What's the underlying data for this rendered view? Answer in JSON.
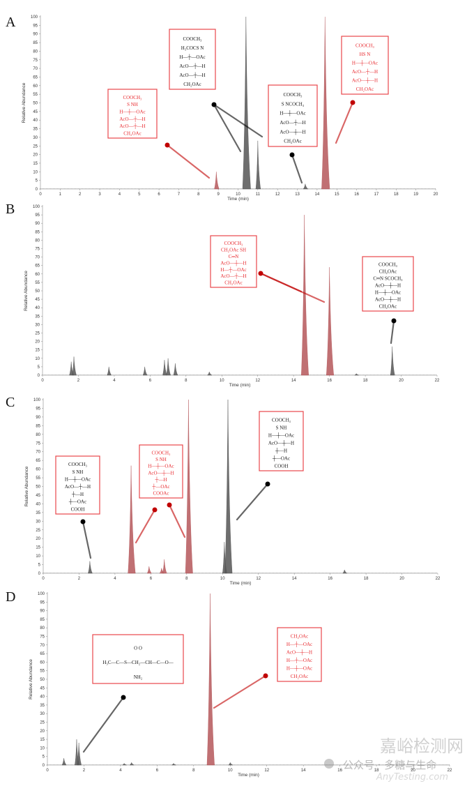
{
  "chart_data": [
    {
      "type": "area",
      "panel_label": "A",
      "xlabel": "Time (min)",
      "ylabel": "Relative Abundance",
      "xlim": [
        0,
        20
      ],
      "ylim": [
        0,
        100
      ],
      "xtick_step": 1,
      "ytick_step": 5,
      "peaks": [
        {
          "rt": 8.9,
          "height": 10,
          "color": "red"
        },
        {
          "rt": 10.4,
          "height": 100,
          "color": "gray"
        },
        {
          "rt": 11.0,
          "height": 28,
          "color": "gray"
        },
        {
          "rt": 13.4,
          "height": 3,
          "color": "gray"
        },
        {
          "rt": 14.4,
          "height": 100,
          "color": "red"
        }
      ],
      "structures": [
        {
          "color": "red",
          "lines": [
            "COOCH₃",
            "S    NH",
            "H—┼—OAc",
            "AcO—┼—H",
            "AcO—┼—H",
            "CH₂OAc"
          ]
        },
        {
          "color": "black",
          "lines": [
            "COOCH₃",
            "H₃COCS    N",
            "H—┼—OAc",
            "AcO—┼—H",
            "AcO—┼—H",
            "CH₂OAc"
          ]
        },
        {
          "color": "black",
          "lines": [
            "COOCH₃",
            "S    NCOCH₃",
            "H—┼—OAc",
            "AcO—┼—H",
            "AcO—┼—H",
            "CH₂OAc"
          ]
        },
        {
          "color": "red",
          "lines": [
            "COOCH₃",
            "HS    N",
            "H—┼—OAc",
            "AcO—┼—H",
            "AcO—┼—H",
            "CH₂OAc"
          ]
        }
      ]
    },
    {
      "type": "area",
      "panel_label": "B",
      "xlabel": "Time (min)",
      "ylabel": "Relative Abundance",
      "xlim": [
        0,
        22
      ],
      "ylim": [
        0,
        100
      ],
      "xtick_step": 2,
      "ytick_step": 5,
      "peaks": [
        {
          "rt": 1.6,
          "height": 8,
          "color": "gray"
        },
        {
          "rt": 1.75,
          "height": 11,
          "color": "gray"
        },
        {
          "rt": 3.7,
          "height": 5,
          "color": "gray"
        },
        {
          "rt": 5.7,
          "height": 5,
          "color": "gray"
        },
        {
          "rt": 6.8,
          "height": 9,
          "color": "gray"
        },
        {
          "rt": 7.0,
          "height": 10,
          "color": "gray"
        },
        {
          "rt": 7.4,
          "height": 7,
          "color": "gray"
        },
        {
          "rt": 9.3,
          "height": 2,
          "color": "gray"
        },
        {
          "rt": 14.6,
          "height": 95,
          "color": "red"
        },
        {
          "rt": 16.0,
          "height": 64,
          "color": "red"
        },
        {
          "rt": 17.5,
          "height": 1,
          "color": "gray"
        },
        {
          "rt": 19.5,
          "height": 17,
          "color": "gray"
        }
      ],
      "structures": [
        {
          "color": "red",
          "lines": [
            "COOCH₃",
            "CH₂OAc      SH",
            "C═N",
            "AcO—┼—H",
            "H—┼—OAc",
            "AcO—┼—H",
            "CH₂OAc"
          ]
        },
        {
          "color": "black",
          "lines": [
            "COOCH₃",
            "CH₂OAc",
            "C═N     SCOCH₃",
            "AcO—┼—H",
            "H—┼—OAc",
            "AcO—┼—H",
            "CH₂OAc"
          ]
        }
      ]
    },
    {
      "type": "area",
      "panel_label": "C",
      "xlabel": "Time (min)",
      "ylabel": "Relative Abundance",
      "xlim": [
        0,
        22
      ],
      "ylim": [
        0,
        100
      ],
      "xtick_step": 2,
      "ytick_step": 5,
      "peaks": [
        {
          "rt": 2.6,
          "height": 7,
          "color": "gray"
        },
        {
          "rt": 4.9,
          "height": 62,
          "color": "red"
        },
        {
          "rt": 5.9,
          "height": 4,
          "color": "red"
        },
        {
          "rt": 6.6,
          "height": 3,
          "color": "red"
        },
        {
          "rt": 6.75,
          "height": 8,
          "color": "red"
        },
        {
          "rt": 8.1,
          "height": 100,
          "color": "red"
        },
        {
          "rt": 10.1,
          "height": 18,
          "color": "gray"
        },
        {
          "rt": 10.3,
          "height": 100,
          "color": "gray"
        },
        {
          "rt": 16.8,
          "height": 2,
          "color": "gray"
        }
      ],
      "structures": [
        {
          "color": "black",
          "lines": [
            "COOCH₃",
            "S    NH",
            "H—┼—OAc",
            "AcO—┼—H",
            "┼—H",
            "┼—OAc",
            "COOH"
          ]
        },
        {
          "color": "red",
          "lines": [
            "COOCH₃",
            "S    NH",
            "H—┼—OAc",
            "AcO—┼—H",
            "┼—H",
            "┼—OAc",
            "COOAc"
          ]
        },
        {
          "color": "black",
          "lines": [
            "COOCH₃",
            "S    NH",
            "H—┼—OAc",
            "AcO—┼—H",
            "┼—H",
            "┼—OAc",
            "COOH"
          ]
        }
      ]
    },
    {
      "type": "area",
      "panel_label": "D",
      "xlabel": "Time (min)",
      "ylabel": "Relative Abundance",
      "xlim": [
        0,
        22
      ],
      "ylim": [
        0,
        100
      ],
      "xtick_step": 2,
      "ytick_step": 5,
      "peaks": [
        {
          "rt": 0.9,
          "height": 4,
          "color": "gray"
        },
        {
          "rt": 1.6,
          "height": 15,
          "color": "gray"
        },
        {
          "rt": 1.72,
          "height": 13,
          "color": "gray"
        },
        {
          "rt": 4.2,
          "height": 1,
          "color": "gray"
        },
        {
          "rt": 4.6,
          "height": 1.5,
          "color": "gray"
        },
        {
          "rt": 6.9,
          "height": 1,
          "color": "gray"
        },
        {
          "rt": 8.9,
          "height": 100,
          "color": "red"
        },
        {
          "rt": 10.0,
          "height": 1.5,
          "color": "gray"
        }
      ],
      "structures": [
        {
          "color": "black",
          "lines": [
            "O          O",
            "H₃C—C—S—CH₂—CH—C—O—",
            "NH₂"
          ]
        },
        {
          "color": "red",
          "lines": [
            "CH₂OAc",
            "H—┼—OAc",
            "AcO—┼—H",
            "H—┼—OAc",
            "H—┼—OAc",
            "CH₂OAc"
          ]
        }
      ]
    }
  ],
  "watermark": {
    "wechat": "公众号 · 多糖与生命",
    "site_cn": "嘉峪检测网",
    "site_en": "AnyTesting.com"
  },
  "colors": {
    "red": "#b5575a",
    "gray": "#555555",
    "box": "#e8474b",
    "struct_red": "#e8282d",
    "callout_red": "#c00000"
  }
}
